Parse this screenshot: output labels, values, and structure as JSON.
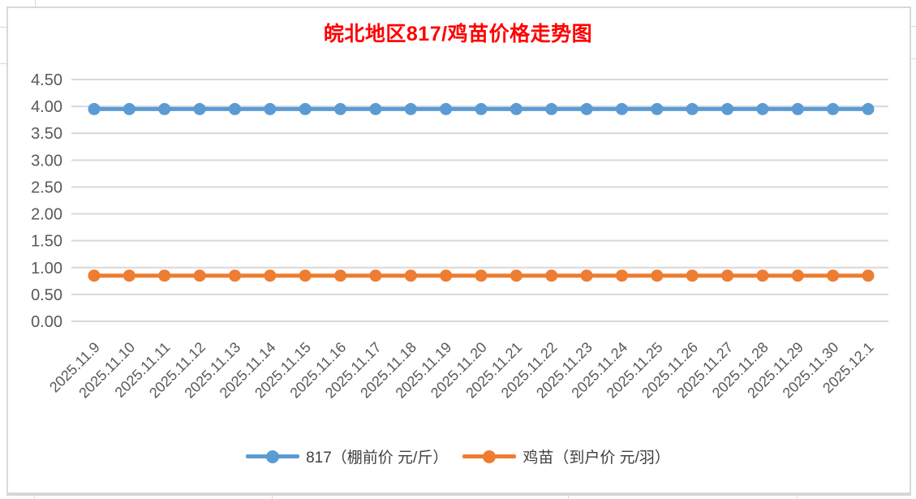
{
  "title": {
    "text": "皖北地区817/鸡苗价格走势图",
    "color": "#FF0000"
  },
  "chart_data": {
    "type": "line",
    "title": "皖北地区817/鸡苗价格走势图",
    "categories": [
      "2025.11.9",
      "2025.11.10",
      "2025.11.11",
      "2025.11.12",
      "2025.11.13",
      "2025.11.14",
      "2025.11.15",
      "2025.11.16",
      "2025.11.17",
      "2025.11.18",
      "2025.11.19",
      "2025.11.20",
      "2025.11.21",
      "2025.11.22",
      "2025.11.23",
      "2025.11.24",
      "2025.11.25",
      "2025.11.26",
      "2025.11.27",
      "2025.11.28",
      "2025.11.29",
      "2025.11.30",
      "2025.12.1"
    ],
    "series": [
      {
        "name": "817（棚前价 元/斤）",
        "color": "#5B9BD5",
        "values": [
          3.95,
          3.95,
          3.95,
          3.95,
          3.95,
          3.95,
          3.95,
          3.95,
          3.95,
          3.95,
          3.95,
          3.95,
          3.95,
          3.95,
          3.95,
          3.95,
          3.95,
          3.95,
          3.95,
          3.95,
          3.95,
          3.95,
          3.95
        ]
      },
      {
        "name": "鸡苗（到户价 元/羽）",
        "color": "#ED7D31",
        "values": [
          0.85,
          0.85,
          0.85,
          0.85,
          0.85,
          0.85,
          0.85,
          0.85,
          0.85,
          0.85,
          0.85,
          0.85,
          0.85,
          0.85,
          0.85,
          0.85,
          0.85,
          0.85,
          0.85,
          0.85,
          0.85,
          0.85,
          0.85
        ]
      }
    ],
    "ylim": [
      0.0,
      4.5
    ],
    "ytick_step": 0.5,
    "ytick_format": "0.00",
    "xlabel": "",
    "ylabel": "",
    "grid": "horizontal",
    "x_label_rotation_deg": 45,
    "legend_position": "bottom"
  },
  "style": {
    "grid_color": "#D9D9D9",
    "axis_text_color": "#595959",
    "frame_border_color": "#D9D9D9"
  }
}
